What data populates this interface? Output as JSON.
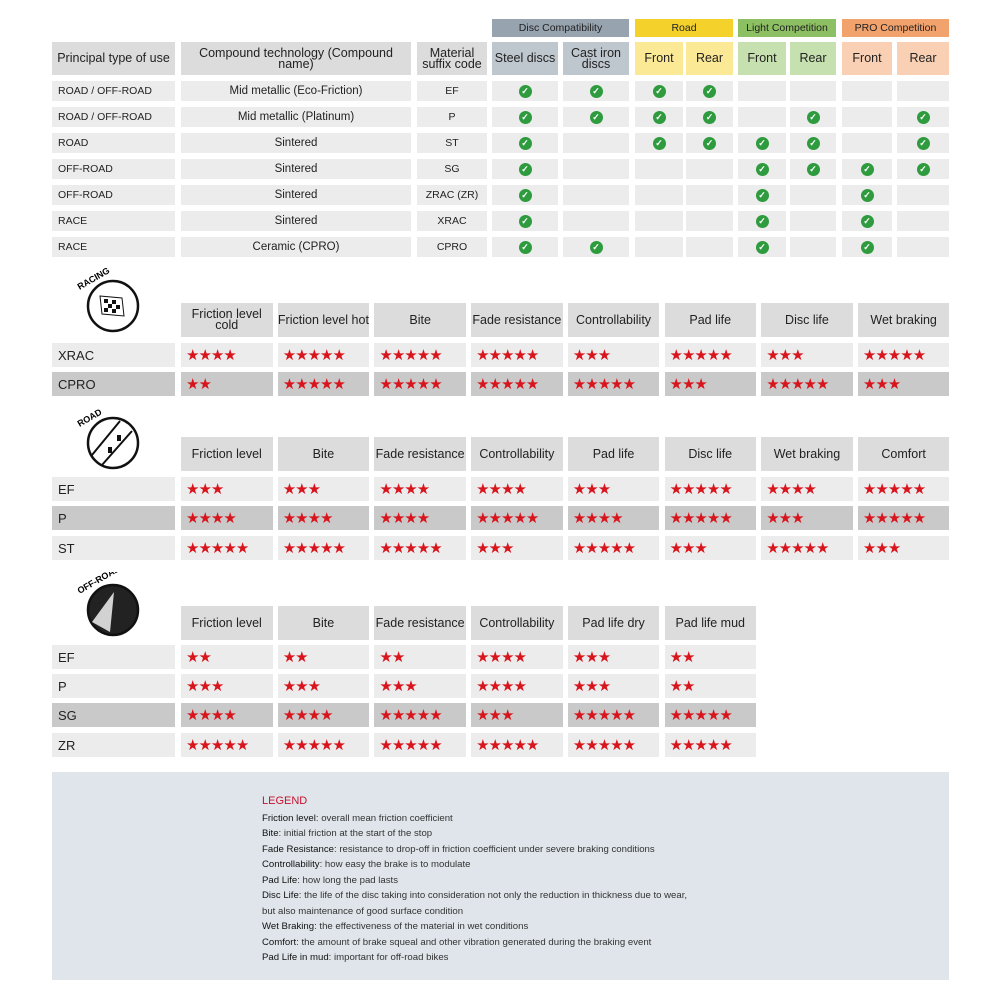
{
  "top_table": {
    "group_headers": [
      {
        "label": "Disc Compatibility",
        "color": "#97a3ae",
        "sub_color": "#bfc7ce"
      },
      {
        "label": "Road",
        "color": "#f4d22b",
        "sub_color": "#fbe996"
      },
      {
        "label": "Light Competition",
        "color": "#8dc063",
        "sub_color": "#c6e0b0"
      },
      {
        "label": "PRO Competition",
        "color": "#f2a26c",
        "sub_color": "#f9d0b3"
      }
    ],
    "headers": [
      "Principal type of use",
      "Compound technology (Compound name)",
      "Material suffix code",
      "Steel discs",
      "Cast iron discs",
      "Front",
      "Rear",
      "Front",
      "Rear",
      "Front",
      "Rear"
    ],
    "rows": [
      {
        "use": "ROAD / OFF-ROAD",
        "compound": "Mid metallic (Eco-Friction)",
        "code": "EF",
        "checks": [
          1,
          1,
          1,
          1,
          0,
          0,
          0,
          0
        ]
      },
      {
        "use": "ROAD / OFF-ROAD",
        "compound": "Mid metallic (Platinum)",
        "code": "P",
        "checks": [
          1,
          1,
          1,
          1,
          0,
          1,
          0,
          1
        ]
      },
      {
        "use": "ROAD",
        "compound": "Sintered",
        "code": "ST",
        "checks": [
          1,
          0,
          1,
          1,
          1,
          1,
          0,
          1
        ]
      },
      {
        "use": "OFF-ROAD",
        "compound": "Sintered",
        "code": "SG",
        "checks": [
          1,
          0,
          0,
          0,
          1,
          1,
          1,
          1
        ]
      },
      {
        "use": "OFF-ROAD",
        "compound": "Sintered",
        "code": "ZRAC (ZR)",
        "checks": [
          1,
          0,
          0,
          0,
          1,
          0,
          1,
          0
        ]
      },
      {
        "use": "RACE",
        "compound": "Sintered",
        "code": "XRAC",
        "checks": [
          1,
          0,
          0,
          0,
          1,
          0,
          1,
          0
        ]
      },
      {
        "use": "RACE",
        "compound": "Ceramic (CPRO)",
        "code": "CPRO",
        "checks": [
          1,
          1,
          0,
          0,
          1,
          0,
          1,
          0
        ]
      }
    ],
    "check_icon": "check-circle-icon",
    "check_color": "#2e9b3e"
  },
  "ratings": [
    {
      "logo": "RACING",
      "headers": [
        "Friction level cold",
        "Friction level hot",
        "Bite",
        "Fade resistance",
        "Controllability",
        "Pad life",
        "Disc life",
        "Wet braking"
      ],
      "rows": [
        {
          "code": "XRAC",
          "stars": [
            4,
            5,
            5,
            5,
            3,
            5,
            3,
            5
          ],
          "dark": false
        },
        {
          "code": "CPRO",
          "stars": [
            2,
            5,
            5,
            5,
            5,
            3,
            5,
            3
          ],
          "dark": true
        }
      ]
    },
    {
      "logo": "ROAD",
      "headers": [
        "Friction level",
        "Bite",
        "Fade resistance",
        "Controllability",
        "Pad life",
        "Disc life",
        "Wet braking",
        "Comfort"
      ],
      "rows": [
        {
          "code": "EF",
          "stars": [
            3,
            3,
            4,
            4,
            3,
            5,
            4,
            5
          ],
          "dark": false
        },
        {
          "code": "P",
          "stars": [
            4,
            4,
            4,
            5,
            4,
            5,
            3,
            5
          ],
          "dark": true
        },
        {
          "code": "ST",
          "stars": [
            5,
            5,
            5,
            3,
            5,
            3,
            5,
            3
          ],
          "dark": false
        }
      ]
    },
    {
      "logo": "OFF-ROAD",
      "headers": [
        "Friction level",
        "Bite",
        "Fade resistance",
        "Controllability",
        "Pad life dry",
        "Pad life mud"
      ],
      "rows": [
        {
          "code": "EF",
          "stars": [
            2,
            2,
            2,
            4,
            3,
            2
          ],
          "dark": false
        },
        {
          "code": "P",
          "stars": [
            3,
            3,
            3,
            4,
            3,
            2
          ],
          "dark": false
        },
        {
          "code": "SG",
          "stars": [
            4,
            4,
            5,
            3,
            5,
            5
          ],
          "dark": true
        },
        {
          "code": "ZR",
          "stars": [
            5,
            5,
            5,
            5,
            5,
            5
          ],
          "dark": false
        }
      ]
    }
  ],
  "star_color": "#d8141c",
  "legend": {
    "title": "LEGEND",
    "items": [
      {
        "term": "Friction level",
        "def": ": overall mean friction coefficient"
      },
      {
        "term": "Bite",
        "def": ": initial friction at the start of the stop"
      },
      {
        "term": "Fade Resistance",
        "def": ": resistance to drop-off in friction coefficient under severe braking conditions"
      },
      {
        "term": "Controllability",
        "def": ": how easy the brake is to modulate"
      },
      {
        "term": "Pad Life",
        "def": ": how long the pad lasts"
      },
      {
        "term": "Disc Life",
        "def": ": the life of the disc taking into consideration not only the reduction in thickness due to wear,"
      },
      {
        "term": "",
        "def": "but also maintenance of good surface condition"
      },
      {
        "term": "Wet Braking",
        "def": ": the effectiveness of the material in wet conditions"
      },
      {
        "term": "Comfort",
        "def": ": the amount of brake squeal and other vibration generated during the braking event"
      },
      {
        "term": "Pad Life in mud",
        "def": ": important for off-road bikes"
      }
    ]
  }
}
